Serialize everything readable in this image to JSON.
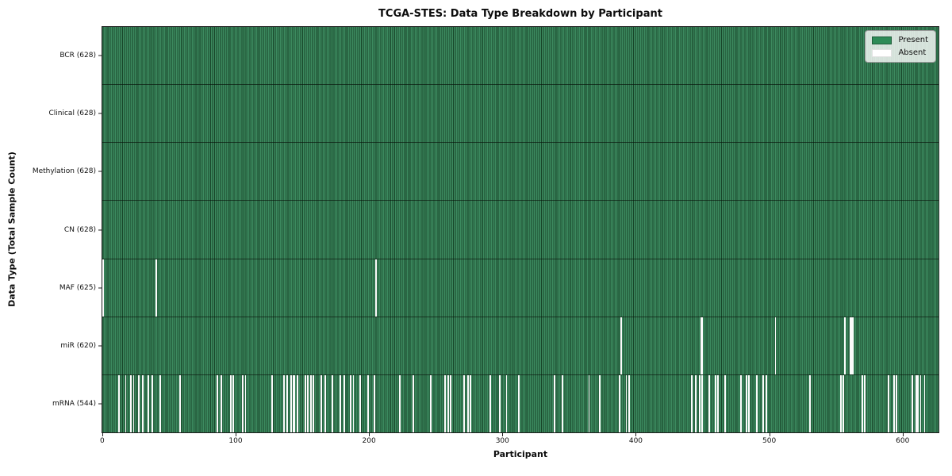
{
  "chart_data": {
    "type": "heatmap",
    "title": "TCGA-STES: Data Type Breakdown by Participant",
    "xlabel": "Participant",
    "ylabel": "Data Type (Total Sample Count)",
    "n_participants": 628,
    "x_ticks": [
      0,
      100,
      200,
      300,
      400,
      500,
      600
    ],
    "legend_position": "upper right",
    "grid": false,
    "colors": {
      "present": "#2e8b57",
      "absent": "#ffffff",
      "cell_edge": "#174428",
      "row_separator": "#1c1c1c"
    },
    "legend": [
      {
        "label": "Present",
        "color": "#2e8b57"
      },
      {
        "label": "Absent",
        "color": "#ffffff"
      }
    ],
    "rows": [
      {
        "name": "bcr",
        "label": "BCR (628)",
        "total": 628,
        "absent": []
      },
      {
        "name": "clinical",
        "label": "Clinical (628)",
        "total": 628,
        "absent": []
      },
      {
        "name": "methylation",
        "label": "Methylation (628)",
        "total": 628,
        "absent": []
      },
      {
        "name": "cn",
        "label": "CN (628)",
        "total": 628,
        "absent": []
      },
      {
        "name": "maf",
        "label": "MAF (625)",
        "total": 625,
        "absent": [
          0,
          40,
          205
        ]
      },
      {
        "name": "mir",
        "label": "miR (620)",
        "total": 620,
        "absent": [
          389,
          449,
          450,
          505,
          557,
          561,
          562,
          563
        ]
      },
      {
        "name": "mrna",
        "label": "mRNA (544)",
        "total": 544,
        "absent": [
          12,
          17,
          21,
          23,
          27,
          30,
          34,
          37,
          43,
          58,
          86,
          89,
          96,
          98,
          105,
          107,
          127,
          136,
          138,
          141,
          143,
          144,
          146,
          152,
          154,
          156,
          158,
          164,
          167,
          172,
          178,
          181,
          186,
          188,
          193,
          199,
          204,
          223,
          233,
          246,
          257,
          259,
          261,
          271,
          274,
          276,
          291,
          298,
          303,
          312,
          339,
          345,
          365,
          373,
          388,
          393,
          395,
          442,
          445,
          448,
          450,
          455,
          460,
          462,
          467,
          479,
          483,
          485,
          491,
          496,
          498,
          531,
          554,
          556,
          570,
          572,
          590,
          594,
          596,
          608,
          611,
          612,
          614,
          617
        ]
      }
    ]
  }
}
